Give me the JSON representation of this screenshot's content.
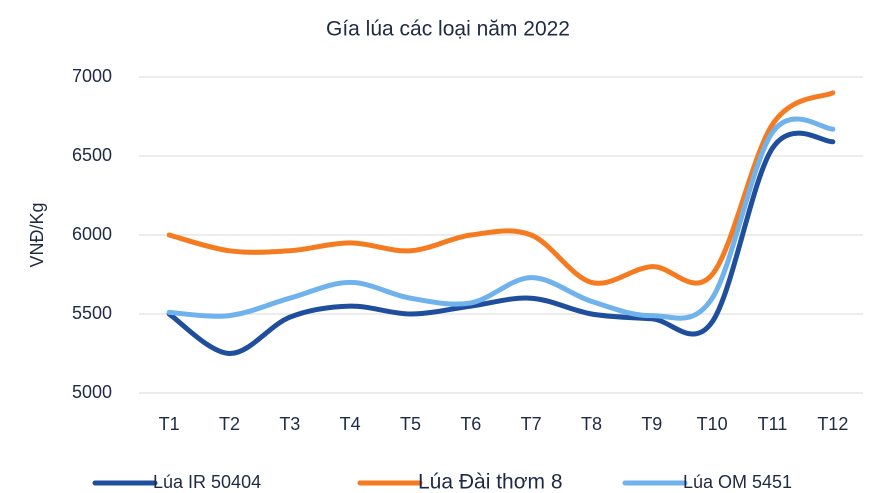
{
  "chart_data": {
    "type": "line",
    "title": "Gía lúa các loại năm 2022",
    "y_label": "VNĐ/Kg",
    "categories": [
      "T1",
      "T2",
      "T3",
      "T4",
      "T5",
      "T6",
      "T7",
      "T8",
      "T9",
      "T10",
      "T11",
      "T12"
    ],
    "series": [
      {
        "name": "Lúa IR 50404",
        "color": "#1f4e9c",
        "values": [
          5500,
          5250,
          5480,
          5550,
          5500,
          5550,
          5600,
          5500,
          5470,
          5450,
          6550,
          6590
        ]
      },
      {
        "name": "Lúa Đài thơm 8",
        "color": "#f47b20",
        "values": [
          6000,
          5900,
          5900,
          5950,
          5900,
          6000,
          6000,
          5700,
          5800,
          5750,
          6700,
          6900
        ]
      },
      {
        "name": "Lúa OM 5451",
        "color": "#6fb2ec",
        "values": [
          5510,
          5490,
          5600,
          5700,
          5600,
          5570,
          5730,
          5580,
          5490,
          5600,
          6650,
          6670
        ]
      }
    ],
    "ylim": [
      5000,
      7000
    ],
    "yticks": [
      5000,
      5500,
      6000,
      6500,
      7000
    ],
    "grid": true,
    "smooth": true,
    "legend": "bottom"
  }
}
